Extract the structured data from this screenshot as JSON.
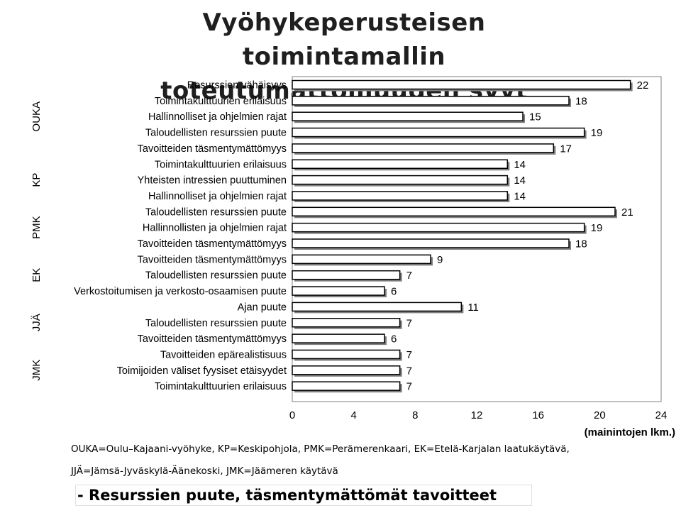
{
  "title": "Vyöhykeperusteisen toimintamallin toteutumattomuuden syyt",
  "legend": {
    "line1": "OUKA=Oulu–Kajaani-vyöhyke, KP=Keskipohjola, PMK=Perämerenkaari, EK=Etelä-Karjalan laatukäytävä,",
    "line2": "JJÄ=Jämsä-Jyväskylä-Äänekoski,  JMK=Jäämeren käytävä"
  },
  "footer": "- Resurssien puute, täsmentymättömät tavoitteet",
  "colors": {
    "bar_fill": "#ffffff",
    "bar_stroke": "#000000",
    "shadow": "#7f7f7f"
  },
  "chart_data": {
    "type": "bar",
    "orientation": "horizontal",
    "xlabel": "(mainintojen lkm.)",
    "xlim": [
      0,
      24
    ],
    "xticks": [
      0,
      4,
      8,
      12,
      16,
      20,
      24
    ],
    "grid": false,
    "groups": [
      {
        "name": "OUKA",
        "bars": [
          {
            "label": "Resurssien vähäisyys",
            "value": 22
          },
          {
            "label": "Toimintakulttuurien erilaisuus",
            "value": 18
          },
          {
            "label": "Hallinnolliset ja ohjelmien rajat",
            "value": 15
          },
          {
            "label": "Taloudellisten resurssien puute",
            "value": 19
          },
          {
            "label": "Tavoitteiden täsmentymättömyys",
            "value": 17
          }
        ]
      },
      {
        "name": "KP",
        "bars": [
          {
            "label": "Toimintakulttuurien erilaisuus",
            "value": 14
          },
          {
            "label": "Yhteisten intressien puuttuminen",
            "value": 14
          },
          {
            "label": "Hallinnolliset ja ohjelmien rajat",
            "value": 14
          }
        ]
      },
      {
        "name": "PMK",
        "bars": [
          {
            "label": "Taloudellisten resurssien puute",
            "value": 21
          },
          {
            "label": "Hallinnollisten ja ohjelmien rajat",
            "value": 19
          },
          {
            "label": "Tavoitteiden täsmentymättömyys",
            "value": 18
          }
        ]
      },
      {
        "name": "EK",
        "bars": [
          {
            "label": "Tavoitteiden täsmentymättömyys",
            "value": 9
          },
          {
            "label": "Taloudellisten resurssien puute",
            "value": 7
          },
          {
            "label": "Verkostoitumisen ja verkosto-osaamisen puute",
            "value": 6
          }
        ]
      },
      {
        "name": "JJÄ",
        "bars": [
          {
            "label": "Ajan puute",
            "value": 11
          },
          {
            "label": "Taloudellisten resurssien puute",
            "value": 7
          },
          {
            "label": "Tavoitteiden täsmentymättömyys",
            "value": 6
          }
        ]
      },
      {
        "name": "JMK",
        "bars": [
          {
            "label": "Tavoitteiden epärealistisuus",
            "value": 7
          },
          {
            "label": "Toimijoiden väliset fyysiset etäisyydet",
            "value": 7
          },
          {
            "label": "Toimintakulttuurien erilaisuus",
            "value": 7
          }
        ]
      }
    ]
  }
}
